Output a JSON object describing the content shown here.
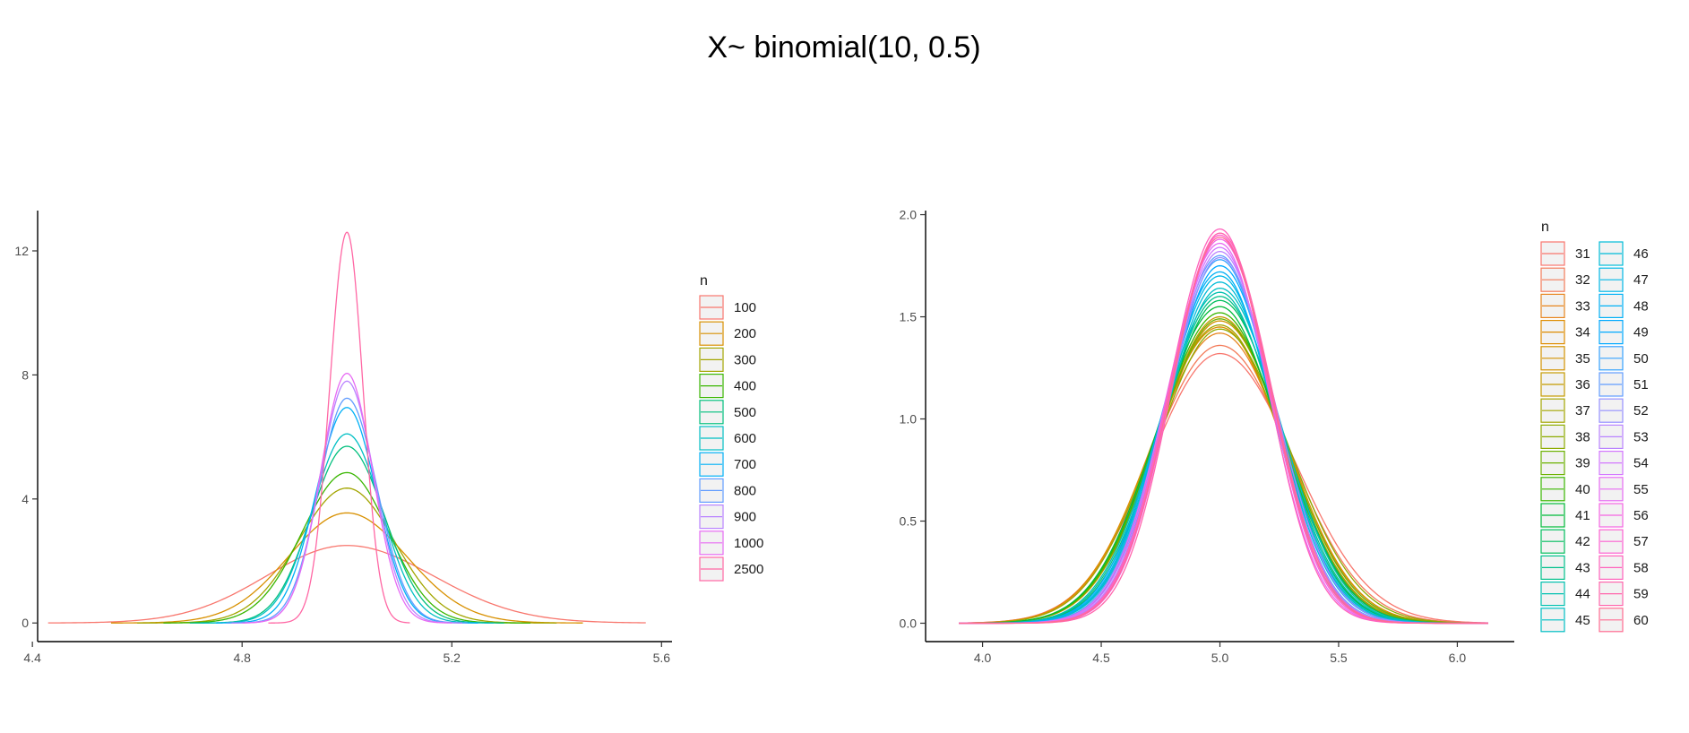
{
  "title": "X~ binomial(10, 0.5)",
  "chart_data": [
    {
      "type": "line",
      "subtype": "density",
      "xlabel": "",
      "ylabel": "",
      "xlim": [
        4.41,
        5.62
      ],
      "ylim": [
        -0.6,
        13.3
      ],
      "x_ticks": [
        4.4,
        4.8,
        5.2,
        5.6
      ],
      "x_tick_labels": [
        "4.4",
        "4.8",
        "5.2",
        "5.6"
      ],
      "y_ticks": [
        0,
        4,
        8,
        12
      ],
      "y_tick_labels": [
        "0",
        "4",
        "8",
        "12"
      ],
      "grid": false,
      "legend_title": "n",
      "legend_position": "right",
      "center": 5.0,
      "series": [
        {
          "name": "100",
          "color": "#F8766D",
          "peak": 2.5,
          "x_range": [
            4.43,
            5.57
          ]
        },
        {
          "name": "200",
          "color": "#D89000",
          "peak": 3.55,
          "x_range": [
            4.55,
            5.45
          ]
        },
        {
          "name": "300",
          "color": "#A3A500",
          "peak": 4.35,
          "x_range": [
            4.6,
            5.4
          ]
        },
        {
          "name": "400",
          "color": "#39B600",
          "peak": 4.85,
          "x_range": [
            4.65,
            5.35
          ]
        },
        {
          "name": "500",
          "color": "#00BF7D",
          "peak": 5.7,
          "x_range": [
            4.7,
            5.3
          ]
        },
        {
          "name": "600",
          "color": "#00BFC4",
          "peak": 6.1,
          "x_range": [
            4.72,
            5.28
          ]
        },
        {
          "name": "700",
          "color": "#00B0F6",
          "peak": 6.95,
          "x_range": [
            4.75,
            5.25
          ]
        },
        {
          "name": "800",
          "color": "#619CFF",
          "peak": 7.25,
          "x_range": [
            4.77,
            5.23
          ]
        },
        {
          "name": "900",
          "color": "#B983FF",
          "peak": 7.8,
          "x_range": [
            4.78,
            5.22
          ]
        },
        {
          "name": "1000",
          "color": "#E76BF3",
          "peak": 8.05,
          "x_range": [
            4.8,
            5.2
          ]
        },
        {
          "name": "2500",
          "color": "#FF67A4",
          "peak": 12.6,
          "x_range": [
            4.85,
            5.12
          ]
        }
      ]
    },
    {
      "type": "line",
      "subtype": "density",
      "xlabel": "",
      "ylabel": "",
      "xlim": [
        3.76,
        6.24
      ],
      "ylim": [
        -0.09,
        2.02
      ],
      "x_ticks": [
        4.0,
        4.5,
        5.0,
        5.5,
        6.0
      ],
      "x_tick_labels": [
        "4.0",
        "4.5",
        "5.0",
        "5.5",
        "6.0"
      ],
      "y_ticks": [
        0.0,
        0.5,
        1.0,
        1.5,
        2.0
      ],
      "y_tick_labels": [
        "0.0",
        "0.5",
        "1.0",
        "1.5",
        "2.0"
      ],
      "grid": false,
      "legend_title": "n",
      "legend_position": "right",
      "center": 5.0,
      "x_range": [
        3.9,
        6.13
      ],
      "series": [
        {
          "name": "31",
          "color": "#F8766D",
          "peak": 1.32
        },
        {
          "name": "32",
          "color": "#F37B59",
          "peak": 1.36
        },
        {
          "name": "33",
          "color": "#E7851E",
          "peak": 1.42
        },
        {
          "name": "34",
          "color": "#DE8C00",
          "peak": 1.45
        },
        {
          "name": "35",
          "color": "#D39200",
          "peak": 1.48
        },
        {
          "name": "36",
          "color": "#C49A00",
          "peak": 1.5
        },
        {
          "name": "37",
          "color": "#A3A500",
          "peak": 1.46
        },
        {
          "name": "38",
          "color": "#8DAB00",
          "peak": 1.44
        },
        {
          "name": "39",
          "color": "#6BB100",
          "peak": 1.49
        },
        {
          "name": "40",
          "color": "#39B600",
          "peak": 1.52
        },
        {
          "name": "41",
          "color": "#00BA38",
          "peak": 1.55
        },
        {
          "name": "42",
          "color": "#00BD5C",
          "peak": 1.58
        },
        {
          "name": "43",
          "color": "#00C08B",
          "peak": 1.6
        },
        {
          "name": "44",
          "color": "#00C0AF",
          "peak": 1.62
        },
        {
          "name": "45",
          "color": "#00BFC4",
          "peak": 1.64
        },
        {
          "name": "46",
          "color": "#00BCD8",
          "peak": 1.67
        },
        {
          "name": "47",
          "color": "#00B8E7",
          "peak": 1.7
        },
        {
          "name": "48",
          "color": "#00B0F6",
          "peak": 1.72
        },
        {
          "name": "49",
          "color": "#00A9FF",
          "peak": 1.75
        },
        {
          "name": "50",
          "color": "#35A2FF",
          "peak": 1.78
        },
        {
          "name": "51",
          "color": "#619CFF",
          "peak": 1.8
        },
        {
          "name": "52",
          "color": "#9590FF",
          "peak": 1.79
        },
        {
          "name": "53",
          "color": "#B983FF",
          "peak": 1.82
        },
        {
          "name": "54",
          "color": "#D376FF",
          "peak": 1.84
        },
        {
          "name": "55",
          "color": "#E76BF3",
          "peak": 1.86
        },
        {
          "name": "56",
          "color": "#F564E3",
          "peak": 1.88
        },
        {
          "name": "57",
          "color": "#FD61D1",
          "peak": 1.9
        },
        {
          "name": "58",
          "color": "#FF62BC",
          "peak": 1.93
        },
        {
          "name": "59",
          "color": "#FF65AC",
          "peak": 1.91
        },
        {
          "name": "60",
          "color": "#FF6C91",
          "peak": 1.89
        }
      ]
    }
  ]
}
